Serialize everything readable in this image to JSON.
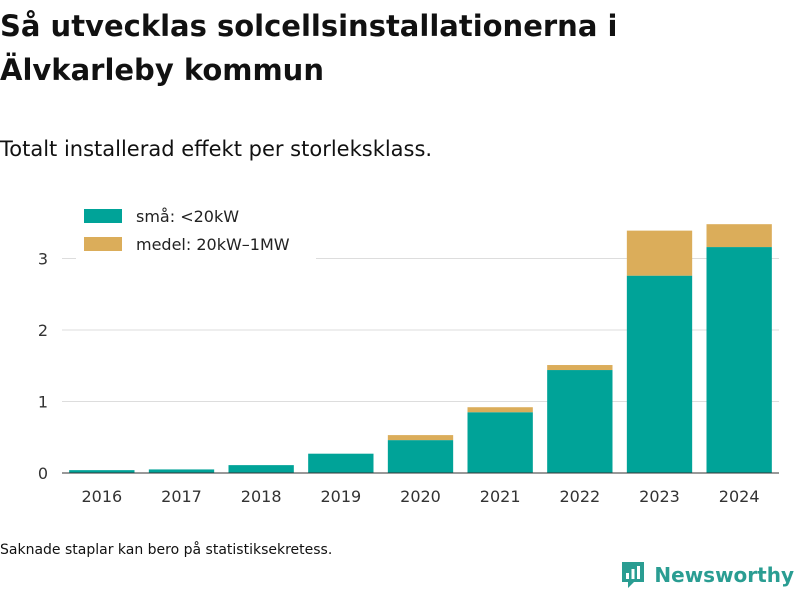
{
  "title": "Så utvecklas solcellsinstallationerna i Älvkarleby kommun",
  "subtitle": "Totalt installerad effekt per storleksklass.",
  "note": "Saknade staplar kan bero på statistiksekretess.",
  "brand": {
    "name": "Newsworthy",
    "icon": "bar-chart-logo-icon",
    "color": "#2a9d92"
  },
  "chart_data": {
    "type": "bar",
    "stacked": true,
    "categories": [
      "2016",
      "2017",
      "2018",
      "2019",
      "2020",
      "2021",
      "2022",
      "2023",
      "2024"
    ],
    "series": [
      {
        "name": "små: <20kW",
        "color": "#00a398",
        "values": [
          0.04,
          0.05,
          0.11,
          0.27,
          0.46,
          0.85,
          1.44,
          2.76,
          3.16
        ]
      },
      {
        "name": "medel: 20kW–1MW",
        "color": "#dbad5a",
        "values": [
          0,
          0,
          0,
          0,
          0.07,
          0.07,
          0.07,
          0.63,
          0.32
        ]
      }
    ],
    "yticks": [
      0,
      1,
      2,
      3
    ],
    "ylim": [
      0,
      3.5
    ],
    "grid": true,
    "legend_position": "top-left",
    "xlabel": "",
    "ylabel": ""
  }
}
